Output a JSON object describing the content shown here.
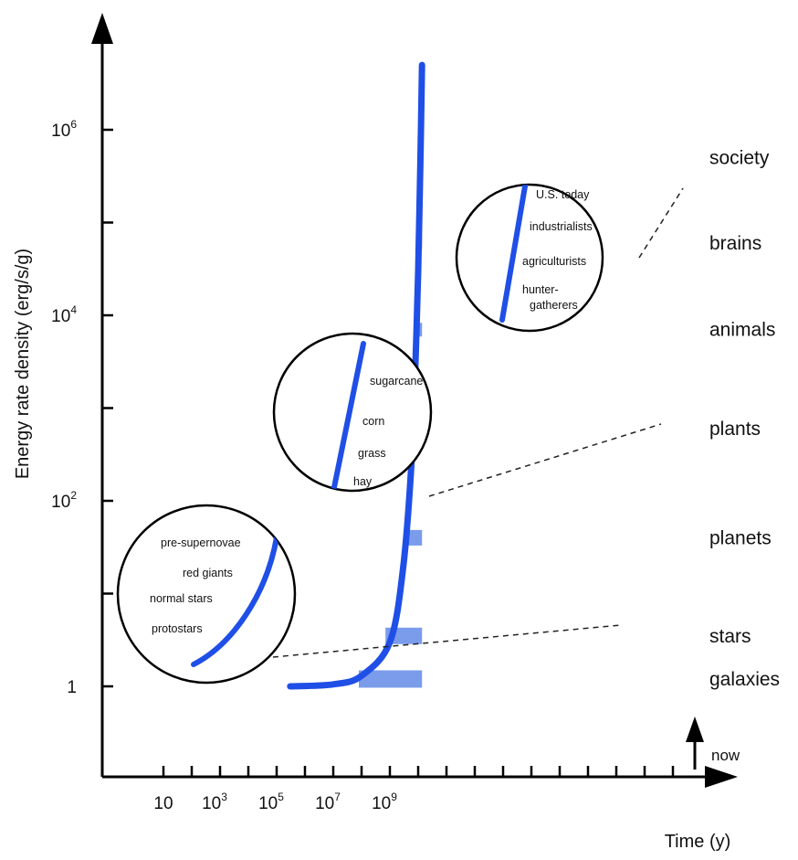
{
  "chart_data": {
    "type": "line",
    "title": "",
    "ylabel": "Energy rate density (erg/s/g)",
    "xlabel": "Time (y)",
    "x_scale": "log",
    "y_scale": "log",
    "x_tick_labels": [
      {
        "base": "10",
        "exp": ""
      },
      {
        "base": "10",
        "exp": "3"
      },
      {
        "base": "10",
        "exp": "5"
      },
      {
        "base": "10",
        "exp": "7"
      },
      {
        "base": "10",
        "exp": "9"
      }
    ],
    "y_tick_labels": [
      {
        "base": "1",
        "exp": ""
      },
      {
        "base": "10",
        "exp": "2"
      },
      {
        "base": "10",
        "exp": "4"
      },
      {
        "base": "10",
        "exp": "6"
      }
    ],
    "now_label": "now",
    "main_curve": {
      "name": "",
      "x": [
        300000,
        10000000,
        100000000,
        1000000000,
        3000000000,
        6000000000,
        8000000000,
        10000000000,
        12000000000,
        13700000000
      ],
      "y": [
        1,
        1.05,
        1.3,
        3,
        20,
        300,
        3000,
        30000,
        500000,
        5000000
      ]
    },
    "categories": [
      {
        "label": "galaxies",
        "y": 1.2,
        "x_start": 80000000,
        "x_end": 13700000000
      },
      {
        "label": "stars",
        "y": 3.5,
        "x_start": 700000000,
        "x_end": 13700000000
      },
      {
        "label": "planets",
        "y": 40,
        "x_start": 4000000000,
        "x_end": 13700000000
      },
      {
        "label": "plants",
        "y": 600,
        "x_start": 6000000000,
        "x_end": 13700000000
      },
      {
        "label": "animals",
        "y": 7000,
        "x_start": 7500000000,
        "x_end": 13700000000
      },
      {
        "label": "brains",
        "y": 60000,
        "x_start": 9000000000,
        "x_end": 13700000000
      },
      {
        "label": "society",
        "y": 500000,
        "x_start": 10500000000,
        "x_end": 13700000000
      }
    ],
    "insets": [
      {
        "name": "stars-inset",
        "labels": [
          "pre-supernovae",
          "red giants",
          "normal stars",
          "protostars"
        ]
      },
      {
        "name": "plants-inset",
        "labels": [
          "sugarcane",
          "corn",
          "grass",
          "hay"
        ]
      },
      {
        "name": "society-inset",
        "labels": [
          "U.S. today",
          "industrialists",
          "agriculturists",
          "hunter-",
          "gatherers"
        ]
      }
    ],
    "colors": {
      "curve": "#1f4fe6",
      "band": "#7a9ceb",
      "axis": "#000000",
      "dash": "#222222"
    },
    "grid": false,
    "legend": "none"
  }
}
